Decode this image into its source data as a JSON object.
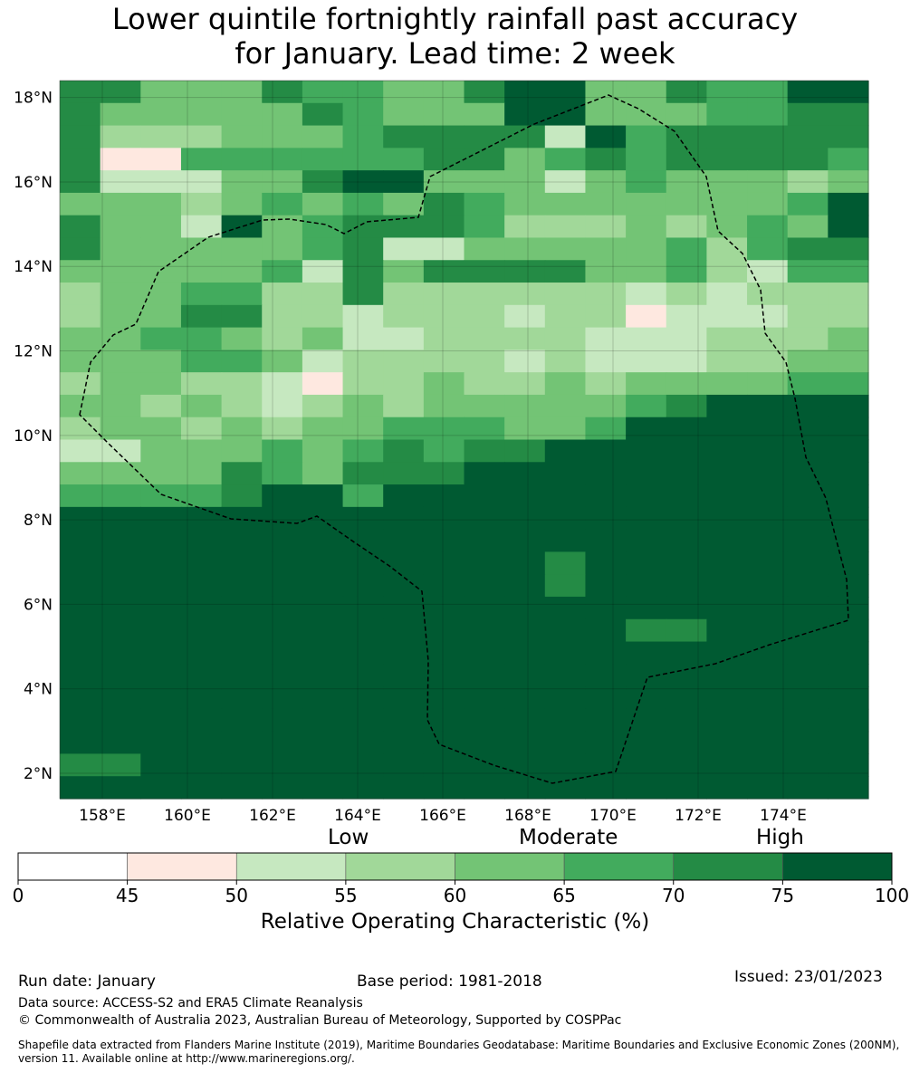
{
  "title_line1": "Lower quintile fortnightly rainfall past accuracy",
  "title_line2": "for January. Lead time: 2 week",
  "map": {
    "lat_labels": [
      "18°N",
      "16°N",
      "14°N",
      "12°N",
      "10°N",
      "8°N",
      "6°N",
      "4°N",
      "2°N"
    ],
    "lon_labels": [
      "158°E",
      "160°E",
      "162°E",
      "164°E",
      "166°E",
      "168°E",
      "170°E",
      "172°E",
      "174°E"
    ],
    "lat_values": [
      18,
      16,
      14,
      12,
      10,
      8,
      6,
      4,
      2
    ],
    "lon_values": [
      158,
      160,
      162,
      164,
      166,
      168,
      170,
      172,
      174
    ],
    "extent": {
      "lon_min": 157.0,
      "lon_max": 176.0,
      "lat_min": 1.4,
      "lat_max": 18.4
    },
    "grid_rows_note": "ROC classes 0-7 per cell, rows north to south",
    "grid": [
      "66444655446774465577",
      "64444465444774445566",
      "63334445666627566666",
      "61155555566456566665",
      "62224467744424544434",
      "44434545465444444457",
      "64427456665333434547",
      "64444456224444453566",
      "44444526466664453255",
      "34455336333333232333",
      "34466332333233122233",
      "44554342233332223334",
      "44455423333232223344",
      "34433213343343444455",
      "44343234344444567777",
      "34434344555445777777",
      "22444545656677777777",
      "44446546667777777777",
      "55556775777777777777",
      "77777777777777777777",
      "77777777777777777777",
      "77777777777767777777",
      "77777777777767777777",
      "77777777777777777777",
      "77777777777777667777",
      "77777777777777777777",
      "77777777777777777777",
      "77777777777777777777",
      "77777777777777777777",
      "77777777777777777777",
      "66777777777777777777",
      "77777777777777777777"
    ]
  },
  "colorbar": {
    "title": "Relative Operating Characteristic (%)",
    "label_low": "Low",
    "label_moderate": "Moderate",
    "label_high": "High",
    "ticks": [
      "0",
      "45",
      "50",
      "55",
      "60",
      "65",
      "70",
      "75",
      "100"
    ],
    "colors": [
      "#ffffff",
      "#fee8e0",
      "#c6e8c0",
      "#a1d899",
      "#73c475",
      "#42ab5d",
      "#248b45",
      "#005a32"
    ]
  },
  "footer": {
    "run_date": "Run date: January",
    "base_period": "Base period: 1981-2018",
    "issued": "Issued: 23/01/2023",
    "data_source": "Data source: ACCESS-S2 and ERA5 Climate Reanalysis",
    "copyright": "© Commonwealth of Australia 2023, Australian Bureau of Meteorology, Supported by COSPPac",
    "shapefile_line1": "Shapefile data extracted from Flanders Marine Institute (2019), Maritime Boundaries Geodatabase: Maritime Boundaries and Exclusive Economic Zones (200NM),",
    "shapefile_line2": "version 11. Available online at http://www.marineregions.org/."
  }
}
